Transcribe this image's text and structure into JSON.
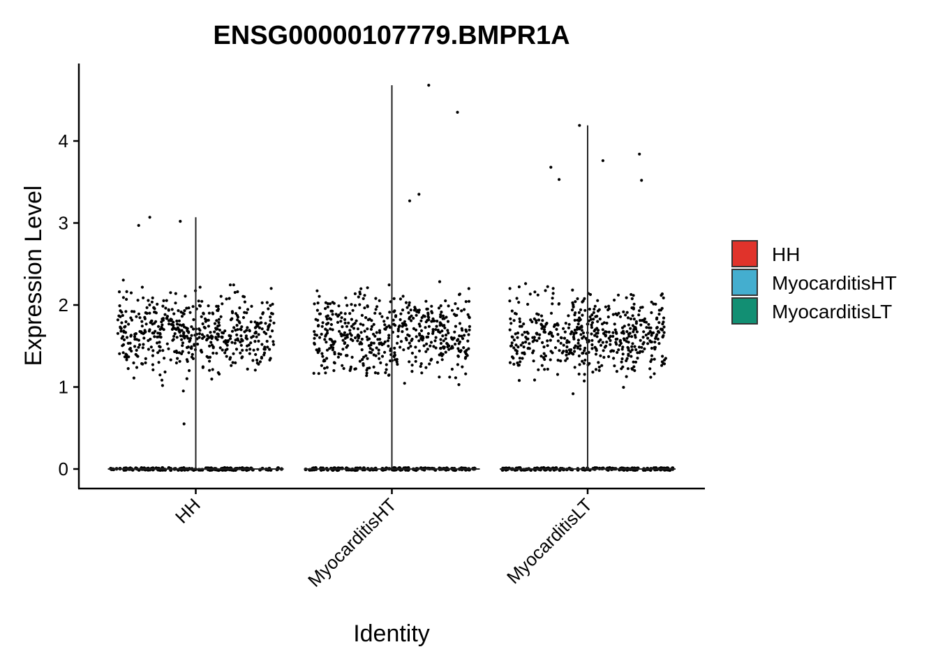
{
  "chart_data": {
    "type": "scatter",
    "subtype": "violin-jitter",
    "title": "ENSG00000107779.BMPR1A",
    "xlabel": "Identity",
    "ylabel": "Expression Level",
    "categories": [
      "HH",
      "MyocarditisHT",
      "MyocarditisLT"
    ],
    "ylim": [
      -0.25,
      4.85
    ],
    "yticks": [
      0,
      1,
      2,
      3,
      4
    ],
    "grid": false,
    "legend_position": "right",
    "legend": [
      {
        "name": "HH",
        "color": "#e0332b"
      },
      {
        "name": "MyocarditisHT",
        "color": "#44aecf"
      },
      {
        "name": "MyocarditisLT",
        "color": "#128f73"
      }
    ],
    "series": [
      {
        "category": "HH",
        "max": 3.07,
        "nonzero_range": [
          0.55,
          3.07
        ],
        "notable_values": [
          3.07,
          3.02,
          2.97,
          0.55
        ]
      },
      {
        "category": "MyocarditisHT",
        "max": 4.68,
        "nonzero_range": [
          0.73,
          4.68
        ],
        "notable_values": [
          4.68,
          4.35,
          3.35,
          3.27
        ]
      },
      {
        "category": "MyocarditisLT",
        "max": 4.19,
        "nonzero_range": [
          0.73,
          4.19
        ],
        "notable_values": [
          4.19,
          3.84,
          3.76,
          3.68,
          3.53,
          3.52
        ]
      }
    ]
  }
}
